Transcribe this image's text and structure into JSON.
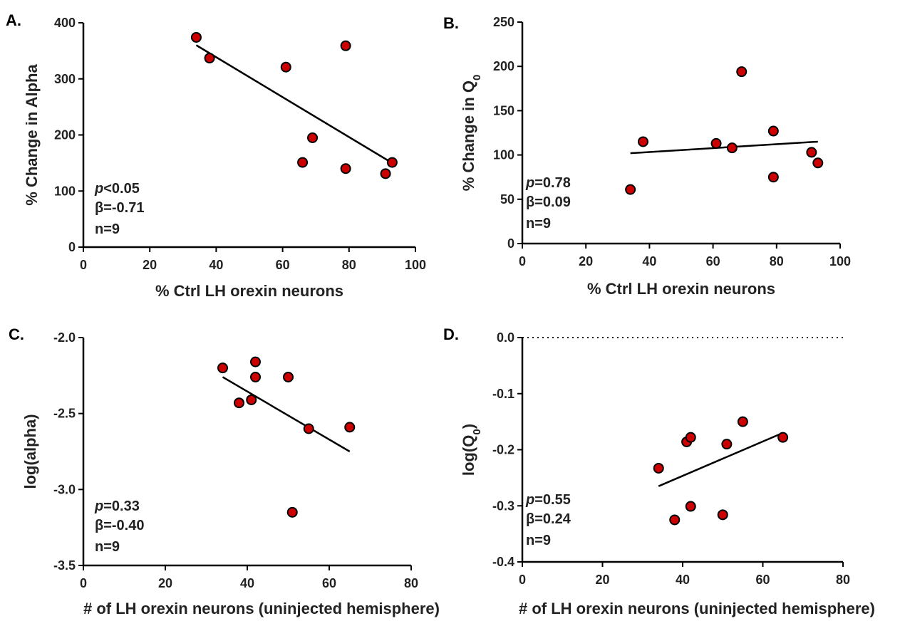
{
  "colors": {
    "point_fill": "#cc0000",
    "point_stroke": "#000000",
    "axis": "#000000",
    "fit_line": "#000000"
  },
  "chart_data": [
    {
      "id": "A",
      "type": "scatter",
      "panel_label": "A.",
      "xlabel": "% Ctrl LH orexin neurons",
      "ylabel": "% Change in Alpha",
      "xlim": [
        0,
        100
      ],
      "ylim": [
        0,
        400
      ],
      "xticks": [
        0,
        20,
        40,
        60,
        80,
        100
      ],
      "yticks": [
        0,
        100,
        200,
        300,
        400
      ],
      "points": [
        {
          "x": 34,
          "y": 374
        },
        {
          "x": 38,
          "y": 337
        },
        {
          "x": 61,
          "y": 321
        },
        {
          "x": 79,
          "y": 359
        },
        {
          "x": 69,
          "y": 195
        },
        {
          "x": 66,
          "y": 151
        },
        {
          "x": 79,
          "y": 140
        },
        {
          "x": 91,
          "y": 131
        },
        {
          "x": 93,
          "y": 151
        }
      ],
      "fit": {
        "x": [
          34,
          93
        ],
        "y": [
          360,
          150
        ]
      },
      "stats": {
        "p_symbol": "p",
        "p_text": "<0.05",
        "beta": "β=-0.71",
        "n": "n=9"
      }
    },
    {
      "id": "B",
      "type": "scatter",
      "panel_label": "B.",
      "xlabel": "% Ctrl LH orexin neurons",
      "ylabel": "% Change in Q",
      "ylabel_sub": "0",
      "xlim": [
        0,
        100
      ],
      "ylim": [
        0,
        250
      ],
      "xticks": [
        0,
        20,
        40,
        60,
        80,
        100
      ],
      "yticks": [
        0,
        50,
        100,
        150,
        200,
        250
      ],
      "points": [
        {
          "x": 34,
          "y": 61
        },
        {
          "x": 38,
          "y": 115
        },
        {
          "x": 61,
          "y": 113
        },
        {
          "x": 66,
          "y": 108
        },
        {
          "x": 69,
          "y": 194
        },
        {
          "x": 79,
          "y": 127
        },
        {
          "x": 79,
          "y": 75
        },
        {
          "x": 91,
          "y": 103
        },
        {
          "x": 93,
          "y": 91
        }
      ],
      "fit": {
        "x": [
          34,
          93
        ],
        "y": [
          102,
          115
        ]
      },
      "stats": {
        "p_symbol": "p",
        "p_text": "=0.78",
        "beta": "β=0.09",
        "n": "n=9"
      }
    },
    {
      "id": "C",
      "type": "scatter",
      "panel_label": "C.",
      "xlabel": "# of LH orexin neurons (uninjected hemisphere)",
      "ylabel": "log(alpha)",
      "xlim": [
        0,
        80
      ],
      "ylim": [
        -3.5,
        -2.0
      ],
      "xticks": [
        0,
        20,
        40,
        60,
        80
      ],
      "yticks": [
        -3.5,
        -3.0,
        -2.5,
        -2.0
      ],
      "ytick_labels": [
        "-3.5",
        "-3.0",
        "-2.5",
        "-2.0"
      ],
      "points": [
        {
          "x": 34,
          "y": -2.2
        },
        {
          "x": 38,
          "y": -2.43
        },
        {
          "x": 41,
          "y": -2.41
        },
        {
          "x": 42,
          "y": -2.26
        },
        {
          "x": 42,
          "y": -2.16
        },
        {
          "x": 50,
          "y": -2.26
        },
        {
          "x": 51,
          "y": -3.15
        },
        {
          "x": 55,
          "y": -2.6
        },
        {
          "x": 65,
          "y": -2.59
        }
      ],
      "fit": {
        "x": [
          34,
          65
        ],
        "y": [
          -2.26,
          -2.75
        ]
      },
      "stats": {
        "p_symbol": "p",
        "p_text": "=0.33",
        "beta": "β=-0.40",
        "n": "n=9"
      }
    },
    {
      "id": "D",
      "type": "scatter",
      "panel_label": "D.",
      "xlabel": "# of LH orexin neurons (uninjected hemisphere)",
      "ylabel": "log(Q",
      "ylabel_sub": "0",
      "ylabel_end": ")",
      "xlim": [
        0,
        80
      ],
      "ylim": [
        -0.4,
        0.0
      ],
      "xticks": [
        0,
        20,
        40,
        60,
        80
      ],
      "yticks": [
        -0.4,
        -0.3,
        -0.2,
        -0.1,
        0.0
      ],
      "ytick_labels": [
        "-0.4",
        "-0.3",
        "-0.2",
        "-0.1",
        "0.0"
      ],
      "zero_line": true,
      "points": [
        {
          "x": 34,
          "y": -0.233
        },
        {
          "x": 38,
          "y": -0.325
        },
        {
          "x": 41,
          "y": -0.186
        },
        {
          "x": 42,
          "y": -0.178
        },
        {
          "x": 42,
          "y": -0.301
        },
        {
          "x": 50,
          "y": -0.316
        },
        {
          "x": 51,
          "y": -0.19
        },
        {
          "x": 55,
          "y": -0.15
        },
        {
          "x": 65,
          "y": -0.178
        }
      ],
      "fit": {
        "x": [
          34,
          65
        ],
        "y": [
          -0.265,
          -0.17
        ]
      },
      "stats": {
        "p_symbol": "p",
        "p_text": "=0.55",
        "beta": "β=0.24",
        "n": "n=9"
      }
    }
  ]
}
